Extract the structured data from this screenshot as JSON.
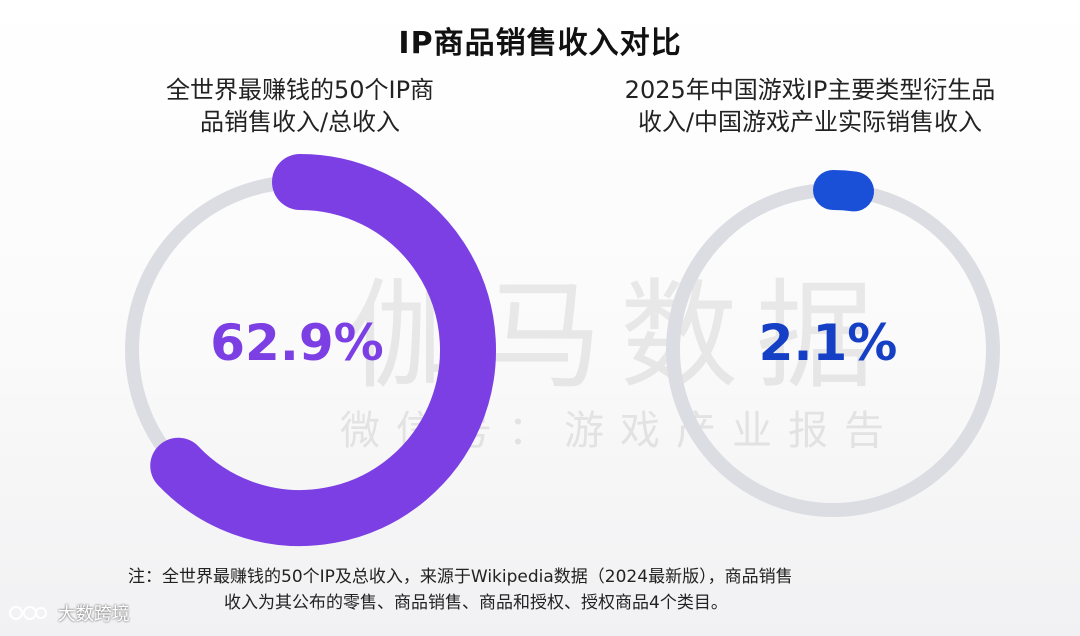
{
  "title": "IP商品销售收入对比",
  "watermark": {
    "main": "伽马数据",
    "sub": "微信号：游戏产业报告"
  },
  "brand": {
    "label": "大数跨境",
    "icon": "brand-logo-icon"
  },
  "colors": {
    "left_accent": "#7b3fe4",
    "right_accent": "#1a4fd8",
    "track": "#dcdde3"
  },
  "chart_data": [
    {
      "type": "pie",
      "subtitle": [
        "全世界最赚钱的50个IP商",
        "品销售收入/总收入"
      ],
      "values": [
        62.9
      ],
      "label": "62.9%",
      "ylim": [
        0,
        100
      ]
    },
    {
      "type": "pie",
      "subtitle": [
        "2025年中国游戏IP主要类型衍生品",
        "收入/中国游戏产业实际销售收入"
      ],
      "values": [
        2.1
      ],
      "label": "2.1%",
      "ylim": [
        0,
        100
      ]
    }
  ],
  "note": {
    "line1": "注：全世界最赚钱的50个IP及总收入，来源于Wikipedia数据（2024最新版），商品销售",
    "line2": "收入为其公布的零售、商品销售、商品和授权、授权商品4个类目。"
  }
}
